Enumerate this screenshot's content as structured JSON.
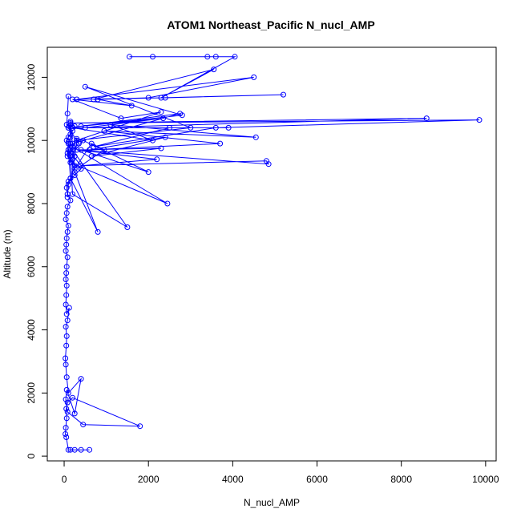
{
  "chart_data": {
    "type": "scatter",
    "title": "ATOM1 Northeast_Pacific N_nucl_AMP",
    "xlabel": "N_nucl_AMP",
    "ylabel": "Altitude (m)",
    "xlim": [
      -400,
      10250
    ],
    "ylim": [
      -150,
      12950
    ],
    "xticks": [
      0,
      2000,
      4000,
      6000,
      8000,
      10000
    ],
    "yticks": [
      0,
      2000,
      4000,
      6000,
      8000,
      10000,
      12000
    ],
    "xtick_labels": [
      "0",
      "2000",
      "4000",
      "6000",
      "8000",
      "10000"
    ],
    "ytick_labels": [
      "0",
      "2000",
      "4000",
      "6000",
      "8000",
      "10000",
      "12000"
    ],
    "grid": false,
    "legend": "none",
    "series": [
      {
        "color": "#0000ff",
        "marker": "open-circle",
        "connected": true,
        "x": [
          150,
          250,
          400,
          600,
          100,
          50,
          30,
          40,
          60,
          50,
          80,
          200,
          1800,
          450,
          80,
          40,
          60,
          250,
          400,
          100,
          60,
          40,
          30,
          50,
          60,
          40,
          80,
          120,
          60,
          40,
          50,
          60,
          40,
          50,
          60,
          80,
          40,
          50,
          60,
          80,
          100,
          40,
          60,
          80,
          150,
          80,
          60,
          100,
          250,
          400,
          150,
          80,
          100,
          150,
          60,
          100,
          150,
          200,
          100,
          150,
          250,
          150,
          200,
          300,
          350,
          200,
          1500,
          200,
          150,
          250,
          800,
          150,
          100,
          400,
          950,
          650,
          250,
          200,
          2450,
          150,
          100,
          250,
          300,
          100,
          2750,
          200,
          150,
          450,
          2000,
          400,
          4850,
          4800,
          400,
          2200,
          300,
          2300,
          650,
          2400,
          600,
          3700,
          950,
          4550,
          1100,
          2100,
          200,
          3900,
          2500,
          700,
          3600,
          9850,
          150,
          8600,
          500,
          2350,
          400,
          2800,
          500,
          3000,
          300,
          2300,
          1350,
          200,
          1600,
          800,
          5200,
          2400,
          300,
          4500,
          2000,
          700,
          3550,
          2300,
          4050,
          1550,
          3600,
          3400,
          2100
        ],
        "y": [
          200,
          200,
          200,
          200,
          200,
          600,
          700,
          900,
          1200,
          1500,
          1700,
          1850,
          950,
          1000,
          1400,
          1800,
          2100,
          1350,
          2450,
          2000,
          2500,
          2900,
          3100,
          3500,
          3800,
          4100,
          4300,
          4700,
          4500,
          4800,
          5100,
          5400,
          5600,
          5800,
          6000,
          6300,
          6500,
          6700,
          6900,
          7100,
          7300,
          7500,
          7700,
          7900,
          8100,
          8300,
          8500,
          8700,
          8900,
          9100,
          9300,
          9500,
          9700,
          9900,
          10000,
          10100,
          10200,
          10300,
          10400,
          10500,
          10450,
          10600,
          9800,
          10050,
          9900,
          9700,
          7250,
          8300,
          9500,
          9000,
          7100,
          8800,
          9700,
          9200,
          9700,
          9900,
          9100,
          9800,
          8000,
          9300,
          9900,
          9500,
          10000,
          10400,
          10850,
          9900,
          9500,
          10000,
          9000,
          9700,
          9250,
          9350,
          9200,
          9400,
          9700,
          9750,
          9500,
          10100,
          9700,
          9900,
          10300,
          10100,
          10500,
          10000,
          10400,
          10400,
          10400,
          9800,
          10400,
          10650,
          10550,
          10700,
          10400,
          10700,
          10450,
          10800,
          11700,
          10400,
          10000,
          10900,
          10700,
          11300,
          11100,
          11300,
          11450,
          11350,
          11300,
          12000,
          11350,
          11300,
          12250,
          11350,
          12650,
          12650,
          12650,
          12650,
          12650
        ]
      },
      {
        "color": "#0000ff",
        "marker": "open-circle",
        "connected": true,
        "x": [
          100,
          80,
          60,
          120,
          150,
          100,
          80,
          200,
          250,
          150,
          100,
          80
        ],
        "y": [
          11400,
          10850,
          10500,
          10450,
          10100,
          9950,
          9600,
          9400,
          9200,
          8800,
          8600,
          8200
        ]
      }
    ]
  }
}
